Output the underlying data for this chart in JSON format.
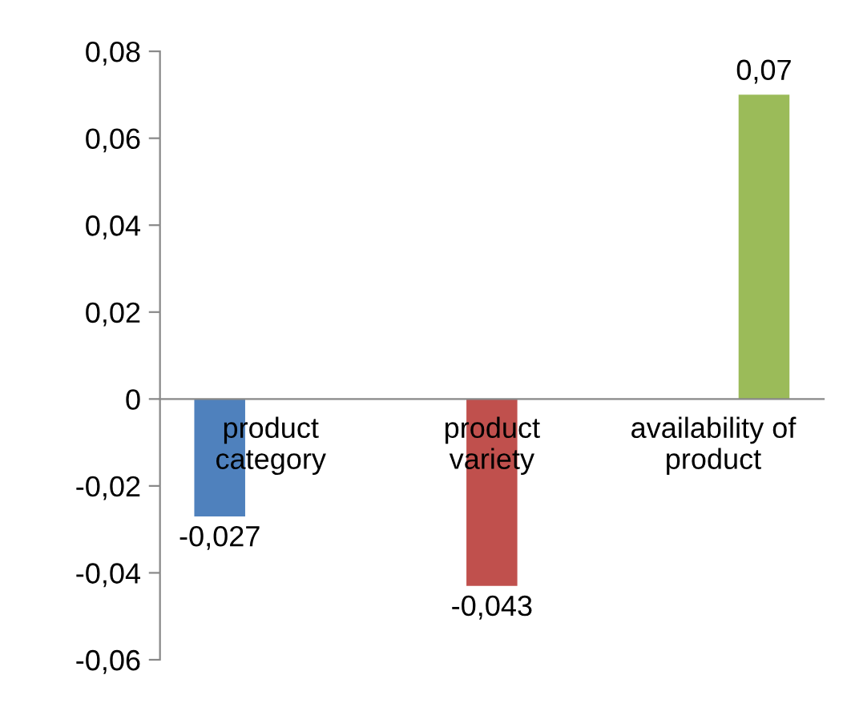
{
  "chart_data": {
    "type": "bar",
    "categories": [
      "product category",
      "product variety",
      "availability of product"
    ],
    "series": [
      {
        "color": "#4f81bd",
        "values": [
          -0.027,
          null,
          null
        ],
        "value_labels": [
          "-0,027",
          null,
          null
        ]
      },
      {
        "color": "#c0504d",
        "values": [
          null,
          -0.043,
          null
        ],
        "value_labels": [
          null,
          "-0,043",
          null
        ]
      },
      {
        "color": "#9bbb59",
        "values": [
          null,
          null,
          0.07
        ],
        "value_labels": [
          null,
          null,
          "0,07"
        ]
      }
    ],
    "ylim": [
      -0.06,
      0.08
    ],
    "yticks": [
      {
        "value": -0.06,
        "label": "-0,06"
      },
      {
        "value": -0.04,
        "label": "-0,04"
      },
      {
        "value": -0.02,
        "label": "-0,02"
      },
      0,
      {
        "value": 0.02,
        "label": "0,02"
      },
      {
        "value": 0.04,
        "label": "0,04"
      },
      {
        "value": 0.06,
        "label": "0,06"
      },
      {
        "value": 0.08,
        "label": "0,08"
      }
    ],
    "grid": false,
    "legend": false
  }
}
